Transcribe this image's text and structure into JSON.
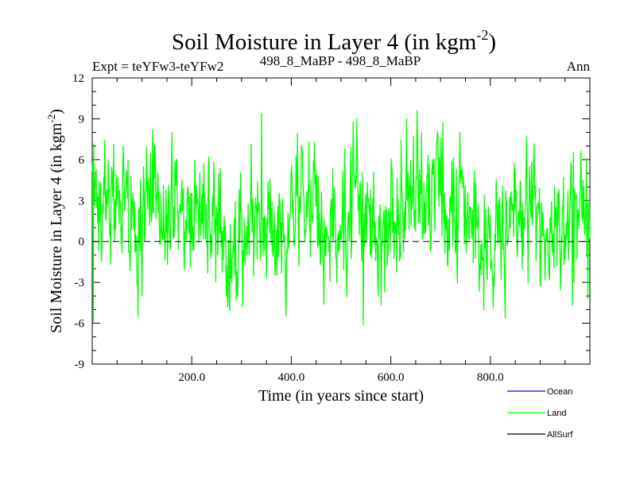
{
  "chart_data": {
    "type": "line",
    "title": "Soil Moisture in Layer 4 (in kgm",
    "title_sup": "-2",
    "title_close": ")",
    "subtitle_left": "Expt = teYFw3-teYFw2",
    "subtitle_center": "498_8_MaBP - 498_8_MaBP",
    "subtitle_right": "Ann",
    "xlabel": "Time (in years since start)",
    "ylabel": "Soil Moisture in Layer 4 (in kgm",
    "ylabel_sup": "-2",
    "ylabel_close": ")",
    "xlim": [
      0,
      1000
    ],
    "ylim": [
      -9,
      12
    ],
    "xticks": [
      200,
      400,
      600,
      800
    ],
    "xtick_labels": [
      "200.0",
      "400.0",
      "600.0",
      "800.0"
    ],
    "yticks": [
      -9,
      -6,
      -3,
      0,
      3,
      6,
      9,
      12
    ],
    "ytick_labels": [
      "-9",
      "-6",
      "-3",
      "0",
      "3",
      "6",
      "9",
      "12"
    ],
    "zero_line": "dashed",
    "series": [
      {
        "name": "Ocean",
        "color": "#0000ff",
        "values": []
      },
      {
        "name": "Land",
        "color": "#00ff00",
        "anchors": {
          "x": [
            0,
            20,
            45,
            70,
            90,
            110,
            140,
            160,
            190,
            220,
            250,
            275,
            285,
            300,
            320,
            340,
            360,
            380,
            400,
            430,
            460,
            470,
            500,
            530,
            545,
            560,
            600,
            630,
            650,
            670,
            700,
            730,
            760,
            790,
            800,
            815,
            850,
            880,
            900,
            930,
            960,
            990,
            1000
          ],
          "y": [
            1.5,
            2.5,
            2.8,
            2.0,
            0.5,
            2.5,
            2.2,
            3.0,
            2.5,
            2.8,
            2.0,
            -0.5,
            -1.0,
            0.5,
            1.5,
            3.0,
            1.0,
            0.0,
            2.0,
            2.5,
            1.5,
            0.0,
            1.5,
            3.0,
            1.0,
            0.5,
            1.5,
            2.5,
            4.0,
            3.5,
            3.0,
            2.0,
            1.5,
            0.0,
            -0.5,
            0.5,
            1.5,
            2.5,
            2.0,
            1.0,
            2.0,
            1.5,
            0.5
          ]
        },
        "noise_sd": 2.3,
        "extremes": [
          {
            "x": 2,
            "y": -5.9
          },
          {
            "x": 62,
            "y": 7.0
          },
          {
            "x": 92,
            "y": -5.5
          },
          {
            "x": 160,
            "y": 8.0
          },
          {
            "x": 272,
            "y": -4.8
          },
          {
            "x": 340,
            "y": 9.4
          },
          {
            "x": 465,
            "y": -4.6
          },
          {
            "x": 545,
            "y": -6.1
          },
          {
            "x": 653,
            "y": 9.6
          },
          {
            "x": 787,
            "y": -5.0
          },
          {
            "x": 830,
            "y": -5.6
          }
        ],
        "n_points": 1000,
        "seed": 4981
      },
      {
        "name": "AllSurf",
        "color": "#000000",
        "values": []
      }
    ],
    "legend_position": "bottom-right"
  }
}
